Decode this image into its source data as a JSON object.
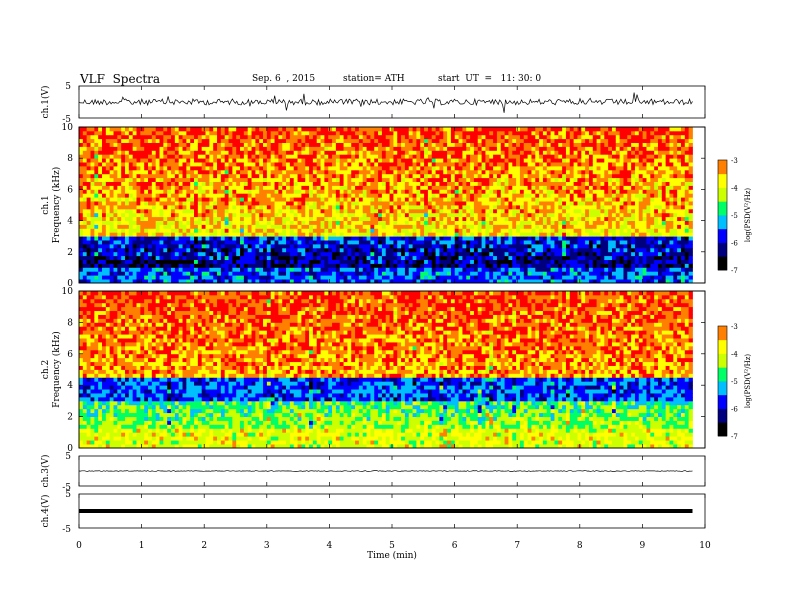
{
  "header": {
    "title": "VLF  Spectra",
    "date": "Sep. 6  , 2015",
    "station": "station= ATH",
    "start": "start  UT  =   11: 30: 0"
  },
  "chart_data": {
    "type": "heatmap",
    "x_axis": {
      "label": "Time  (min)",
      "range": [
        0,
        10
      ],
      "ticks": [
        0,
        1,
        2,
        3,
        4,
        5,
        6,
        7,
        8,
        9,
        10
      ],
      "data_end": 9.8
    },
    "panels": [
      {
        "kind": "waveform",
        "ylabel": "ch.1(V)",
        "ylim": [
          -5,
          5
        ],
        "tick_labels": [
          "5",
          "-5"
        ],
        "level": 0,
        "noise": "high"
      },
      {
        "kind": "spectrogram",
        "ylabel": "ch.1\nFrequency  (kHz)",
        "ylim": [
          0,
          10
        ],
        "ticks": [
          0,
          2,
          4,
          6,
          8,
          10
        ],
        "colorbar": {
          "label": "log(PSD(V²/Hz)",
          "range": [
            -7,
            -3
          ],
          "ticks": [
            -3,
            -4,
            -5,
            -6,
            -7
          ]
        },
        "profile": "weak"
      },
      {
        "kind": "spectrogram",
        "ylabel": "ch.2\nFrequency  (kHz)",
        "ylim": [
          0,
          10
        ],
        "ticks": [
          0,
          2,
          4,
          6,
          8,
          10
        ],
        "colorbar": {
          "label": "log(PSD(V²/Hz)",
          "range": [
            -7,
            -3
          ],
          "ticks": [
            -3,
            -4,
            -5,
            -6,
            -7
          ]
        },
        "profile": "strong"
      },
      {
        "kind": "waveform",
        "ylabel": "ch.3(V)",
        "ylim": [
          -5,
          5
        ],
        "tick_labels": [
          "5",
          "-5"
        ],
        "level": 0,
        "noise": "low"
      },
      {
        "kind": "waveform",
        "ylabel": "ch.4(V)",
        "ylim": [
          -5,
          5
        ],
        "tick_labels": [
          "5",
          "-5"
        ],
        "level": 0,
        "noise": "flat"
      }
    ],
    "colormap": [
      "#000000",
      "#00007f",
      "#0000ff",
      "#00bfff",
      "#00ff66",
      "#ccff00",
      "#ffff00",
      "#ff8000",
      "#ff0000",
      "#ffffff"
    ]
  }
}
